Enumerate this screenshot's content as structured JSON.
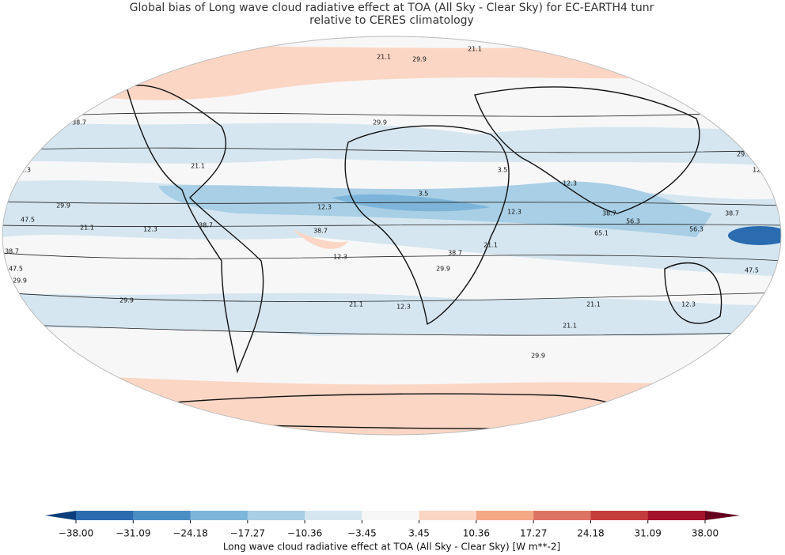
{
  "title": "Global bias of Long wave cloud radiative effect at TOA (All Sky - Clear Sky) for EC-EARTH4 tunr",
  "subtitle": "relative to CERES climatology",
  "contour_labels": [
    "12.3",
    "21.1",
    "29.9",
    "21.1",
    "38.7",
    "29.9",
    "12.3",
    "21.1",
    "29.9",
    "47.5",
    "12.3",
    "38.7",
    "38.7",
    "12.3",
    "29.9",
    "21.1",
    "12.3",
    "3.5",
    "3.5",
    "12.3",
    "38.7",
    "29.9",
    "21.1",
    "12.3",
    "38.7",
    "29.9",
    "12.3",
    "38.7",
    "56.3",
    "65.1",
    "56.3",
    "47.5",
    "12.3",
    "21.1",
    "29.9",
    "29.9",
    "21.1",
    "12.3",
    "3.5",
    "29.9",
    "21.1",
    "38.7",
    "47.5",
    "29.9",
    "21.1"
  ],
  "colorbar": {
    "label": "Long wave cloud radiative effect at TOA (All Sky - Clear Sky) [W m**-2]",
    "lim": [
      -38,
      38
    ],
    "ticks": [
      {
        "value": -38,
        "label": "−38.00"
      },
      {
        "value": -31.09,
        "label": "−31.09"
      },
      {
        "value": -24.18,
        "label": "−24.18"
      },
      {
        "value": -17.27,
        "label": "−17.27"
      },
      {
        "value": -10.36,
        "label": "−10.36"
      },
      {
        "value": -3.45,
        "label": "−3.45"
      },
      {
        "value": 3.45,
        "label": "3.45"
      },
      {
        "value": 10.36,
        "label": "10.36"
      },
      {
        "value": 17.27,
        "label": "17.27"
      },
      {
        "value": 24.18,
        "label": "24.18"
      },
      {
        "value": 31.09,
        "label": "31.09"
      },
      {
        "value": 38,
        "label": "38.00"
      }
    ],
    "colors": [
      "#2b6cb0",
      "#4b8ec4",
      "#7db5da",
      "#a8cfe5",
      "#d5e6f0",
      "#f7f7f7",
      "#fbd6c4",
      "#f4a886",
      "#de7363",
      "#c43c3c",
      "#a3142a"
    ],
    "extend_colors": [
      "#0a3d7a",
      "#67001f"
    ]
  }
}
